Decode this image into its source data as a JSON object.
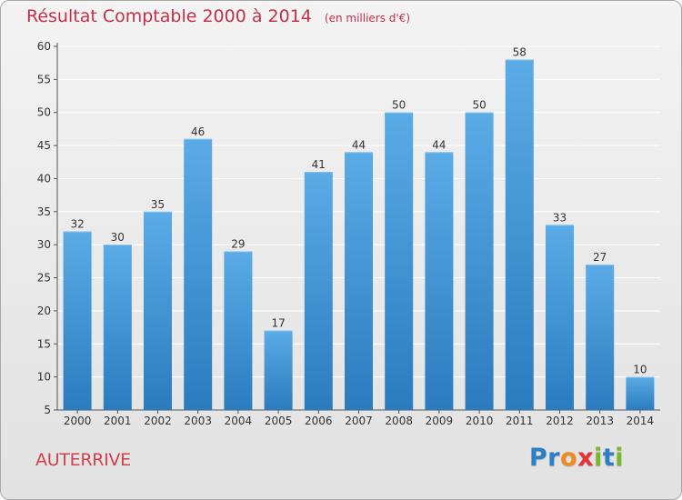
{
  "header": {
    "title": "Résultat Comptable 2000 à 2014",
    "subtitle": "(en milliers d'€)"
  },
  "footer": {
    "place": "AUTERRIVE",
    "logo_letters": [
      "P",
      "r",
      "o",
      "x",
      "i",
      "t",
      "i"
    ],
    "logo_colors": [
      "#2b7fc5",
      "#2b7fc5",
      "#f28b1c",
      "#e63232",
      "#7ab828",
      "#2b7fc5",
      "#7ab828"
    ]
  },
  "chart_data": {
    "type": "bar",
    "title": "Résultat Comptable 2000 à 2014",
    "subtitle": "(en milliers d'€)",
    "categories": [
      "2000",
      "2001",
      "2002",
      "2003",
      "2004",
      "2005",
      "2006",
      "2007",
      "2008",
      "2009",
      "2010",
      "2011",
      "2012",
      "2013",
      "2014"
    ],
    "values": [
      32,
      30,
      35,
      46,
      29,
      17,
      41,
      44,
      50,
      44,
      50,
      58,
      33,
      27,
      10
    ],
    "ylim": [
      5,
      60
    ],
    "yticks": [
      5,
      10,
      15,
      20,
      25,
      30,
      35,
      40,
      45,
      50,
      55,
      60
    ],
    "grid": true,
    "bar_color_top": "#5aabe6",
    "bar_color_bottom": "#2a7cbf"
  }
}
